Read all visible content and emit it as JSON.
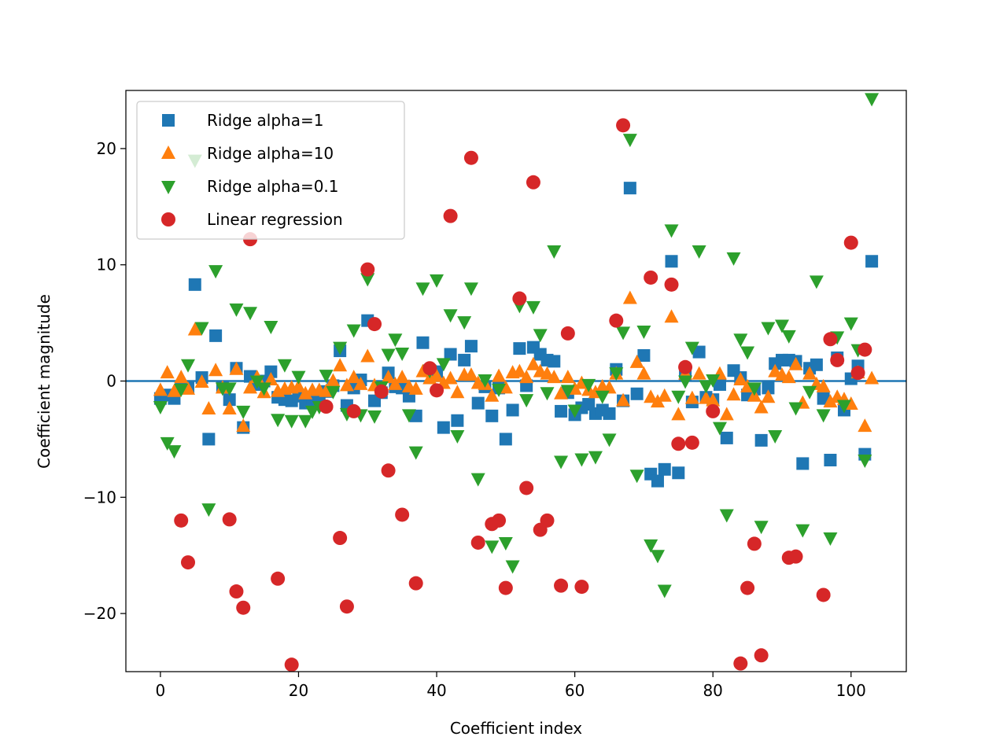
{
  "chart_data": {
    "type": "scatter",
    "title": "",
    "xlabel": "Coefficient index",
    "ylabel": "Coefficient magnitude",
    "xlim": [
      -5,
      108
    ],
    "ylim": [
      -25,
      25
    ],
    "xticks": [
      0,
      20,
      40,
      60,
      80,
      100
    ],
    "yticks": [
      -20,
      -10,
      0,
      10,
      20
    ],
    "xtick_labels": [
      "0",
      "20",
      "40",
      "60",
      "80",
      "100"
    ],
    "ytick_labels": [
      "−20",
      "−10",
      "0",
      "10",
      "20"
    ],
    "hline": {
      "y": 0,
      "color": "#1f77b4"
    },
    "grid": false,
    "legend_position": "upper-left",
    "series": [
      {
        "name": "Ridge alpha=1",
        "marker": "square",
        "color": "#1f77b4",
        "x": [
          0,
          1,
          2,
          3,
          4,
          5,
          6,
          7,
          8,
          9,
          10,
          11,
          12,
          13,
          14,
          15,
          16,
          17,
          18,
          19,
          20,
          21,
          22,
          23,
          24,
          25,
          26,
          27,
          28,
          29,
          30,
          31,
          32,
          33,
          34,
          35,
          36,
          37,
          38,
          39,
          40,
          41,
          42,
          43,
          44,
          45,
          46,
          47,
          48,
          49,
          50,
          51,
          52,
          53,
          54,
          55,
          56,
          57,
          58,
          59,
          60,
          61,
          62,
          63,
          64,
          65,
          66,
          67,
          68,
          69,
          70,
          71,
          72,
          73,
          74,
          75,
          76,
          77,
          78,
          79,
          80,
          81,
          82,
          83,
          84,
          85,
          86,
          87,
          88,
          89,
          90,
          91,
          92,
          93,
          94,
          95,
          96,
          97,
          98,
          99,
          100,
          101,
          102,
          103
        ],
        "y": [
          -1.5,
          -1.2,
          -1.5,
          -0.5,
          -0.6,
          8.3,
          0.3,
          -5.0,
          3.9,
          -0.5,
          -1.6,
          1.1,
          -4.0,
          0.4,
          -0.3,
          0.0,
          0.8,
          -1.4,
          -1.6,
          -1.7,
          -1.3,
          -1.9,
          -1.8,
          -1.6,
          -0.9,
          -0.4,
          2.6,
          -2.1,
          -0.6,
          0.1,
          5.2,
          -1.7,
          -1.0,
          0.7,
          -0.5,
          -0.6,
          -1.3,
          -3.0,
          3.3,
          0.9,
          0.8,
          -4.0,
          2.3,
          -3.4,
          1.8,
          3.0,
          -1.9,
          -0.5,
          -3.0,
          -0.6,
          -5.0,
          -2.5,
          2.8,
          -0.4,
          2.9,
          2.3,
          1.8,
          1.7,
          -2.6,
          -1.0,
          -2.9,
          -2.3,
          -2.0,
          -2.8,
          -2.5,
          -2.8,
          1.0,
          -1.7,
          16.6,
          -1.1,
          2.2,
          -8.0,
          -8.6,
          -7.6,
          10.3,
          -7.9,
          0.5,
          -1.8,
          2.5,
          -1.4,
          -1.6,
          -0.3,
          -4.9,
          0.9,
          0.3,
          -1.2,
          -0.7,
          -5.1,
          -0.6,
          1.5,
          1.8,
          1.8,
          1.7,
          -7.1,
          1.1,
          1.4,
          -1.5,
          -6.8,
          2.0,
          -2.5,
          0.2,
          1.3,
          -6.3,
          10.3
        ]
      },
      {
        "name": "Ridge alpha=10",
        "marker": "triangle-up",
        "color": "#ff7f0e",
        "x": [
          0,
          1,
          2,
          3,
          4,
          5,
          6,
          7,
          8,
          9,
          10,
          11,
          12,
          13,
          14,
          15,
          16,
          17,
          18,
          19,
          20,
          21,
          22,
          23,
          24,
          25,
          26,
          27,
          28,
          29,
          30,
          31,
          32,
          33,
          34,
          35,
          36,
          37,
          38,
          39,
          40,
          41,
          42,
          43,
          44,
          45,
          46,
          47,
          48,
          49,
          50,
          51,
          52,
          53,
          54,
          55,
          56,
          57,
          58,
          59,
          60,
          61,
          62,
          63,
          64,
          65,
          66,
          67,
          68,
          69,
          70,
          71,
          72,
          73,
          74,
          75,
          76,
          77,
          78,
          79,
          80,
          81,
          82,
          83,
          84,
          85,
          86,
          87,
          88,
          89,
          90,
          91,
          92,
          93,
          94,
          95,
          96,
          97,
          98,
          99,
          100,
          101,
          102,
          103
        ],
        "y": [
          -0.8,
          0.7,
          -0.9,
          0.3,
          -0.7,
          4.4,
          -0.1,
          -2.4,
          0.9,
          -0.6,
          -2.4,
          1.0,
          -3.9,
          -0.6,
          0.3,
          -1.0,
          0.1,
          -0.9,
          -0.7,
          -0.6,
          -0.5,
          -1.1,
          -0.8,
          -0.8,
          -0.9,
          0.0,
          1.3,
          -0.4,
          0.3,
          -0.3,
          2.1,
          -0.4,
          -0.7,
          0.3,
          -0.3,
          0.3,
          -0.5,
          -0.7,
          0.8,
          0.2,
          0.4,
          -0.2,
          0.2,
          -1.0,
          0.5,
          0.5,
          -0.2,
          -0.3,
          -1.3,
          0.4,
          -0.6,
          0.7,
          0.8,
          0.3,
          1.4,
          0.8,
          0.6,
          0.3,
          -1.1,
          0.3,
          -0.7,
          -0.2,
          -0.8,
          -1.0,
          -0.5,
          -0.6,
          0.6,
          -1.7,
          7.1,
          1.6,
          0.6,
          -1.4,
          -1.8,
          -1.3,
          5.5,
          -2.9,
          0.6,
          -1.5,
          0.6,
          -1.5,
          -1.7,
          0.6,
          -2.9,
          -1.2,
          0.1,
          -0.5,
          -1.3,
          -2.3,
          -1.4,
          0.8,
          0.5,
          0.3,
          1.4,
          -1.9,
          0.6,
          -0.3,
          -0.5,
          -1.8,
          -1.4,
          -1.6,
          -2.0,
          0.7,
          -3.9,
          0.2
        ]
      },
      {
        "name": "Ridge alpha=0.1",
        "marker": "triangle-down",
        "color": "#2ca02c",
        "x": [
          0,
          1,
          2,
          3,
          4,
          5,
          6,
          7,
          8,
          9,
          10,
          11,
          12,
          13,
          14,
          15,
          16,
          17,
          18,
          19,
          20,
          21,
          22,
          23,
          24,
          25,
          26,
          27,
          28,
          29,
          30,
          31,
          32,
          33,
          34,
          35,
          36,
          37,
          38,
          39,
          40,
          41,
          42,
          43,
          44,
          45,
          46,
          47,
          48,
          49,
          50,
          51,
          52,
          53,
          54,
          55,
          56,
          57,
          58,
          59,
          60,
          61,
          62,
          63,
          64,
          65,
          66,
          67,
          68,
          69,
          70,
          71,
          72,
          73,
          74,
          75,
          76,
          77,
          78,
          79,
          80,
          81,
          82,
          83,
          84,
          85,
          86,
          87,
          88,
          89,
          90,
          91,
          92,
          93,
          94,
          95,
          96,
          97,
          98,
          99,
          100,
          101,
          102,
          103
        ],
        "y": [
          -2.2,
          -5.3,
          -6.0,
          -0.7,
          1.4,
          19.0,
          4.6,
          -11.0,
          9.5,
          -0.6,
          -0.6,
          6.2,
          -2.6,
          5.9,
          0.0,
          -0.6,
          4.7,
          -3.3,
          1.4,
          -3.4,
          0.4,
          -3.4,
          -2.6,
          -2.2,
          0.5,
          -0.9,
          2.9,
          -2.8,
          4.4,
          -2.9,
          8.8,
          -3.0,
          -0.5,
          2.3,
          3.6,
          2.4,
          -2.9,
          -6.1,
          8.0,
          0.9,
          8.7,
          1.5,
          5.7,
          -4.7,
          5.1,
          8.0,
          -8.4,
          0.1,
          -14.2,
          -0.7,
          -13.9,
          -15.9,
          6.5,
          -1.6,
          6.4,
          4.0,
          -1.0,
          11.2,
          -6.9,
          -0.8,
          -2.5,
          -6.7,
          -0.3,
          -6.5,
          -1.3,
          -5.0,
          0.7,
          4.2,
          20.8,
          -8.1,
          4.3,
          -14.1,
          -15.0,
          -18.0,
          13.0,
          -1.3,
          0.0,
          2.9,
          11.2,
          -0.4,
          0.1,
          -4.0,
          -11.5,
          10.6,
          3.6,
          2.5,
          -0.6,
          -12.5,
          4.6,
          -4.7,
          4.8,
          3.9,
          -2.3,
          -12.8,
          -0.9,
          8.6,
          -2.9,
          -13.5,
          3.8,
          -2.1,
          5.0,
          2.7,
          -6.8,
          24.3
        ]
      },
      {
        "name": "Linear regression",
        "marker": "circle",
        "color": "#d62728",
        "x": [
          3,
          4,
          10,
          11,
          12,
          13,
          17,
          19,
          24,
          26,
          27,
          28,
          30,
          31,
          32,
          33,
          35,
          37,
          39,
          40,
          42,
          45,
          46,
          48,
          49,
          50,
          52,
          53,
          54,
          55,
          56,
          58,
          59,
          61,
          66,
          67,
          71,
          74,
          75,
          76,
          77,
          80,
          84,
          85,
          86,
          87,
          91,
          92,
          96,
          97,
          98,
          100,
          101,
          102
        ],
        "y": [
          -12.0,
          -15.6,
          -11.9,
          -18.1,
          -19.5,
          12.2,
          -17.0,
          -24.4,
          -2.2,
          -13.5,
          -19.4,
          -2.6,
          9.6,
          4.9,
          -0.9,
          -7.7,
          -11.5,
          -17.4,
          1.1,
          -0.8,
          14.2,
          19.2,
          -13.9,
          -12.3,
          -12.0,
          -17.8,
          7.1,
          -9.2,
          17.1,
          -12.8,
          -12.0,
          -17.6,
          4.1,
          -17.7,
          5.2,
          22.0,
          8.9,
          8.3,
          -5.4,
          1.2,
          -5.3,
          -2.6,
          -24.3,
          -17.8,
          -14.0,
          -23.6,
          -15.2,
          -15.1,
          -18.4,
          3.6,
          1.8,
          11.9,
          0.7,
          2.7
        ]
      }
    ]
  }
}
